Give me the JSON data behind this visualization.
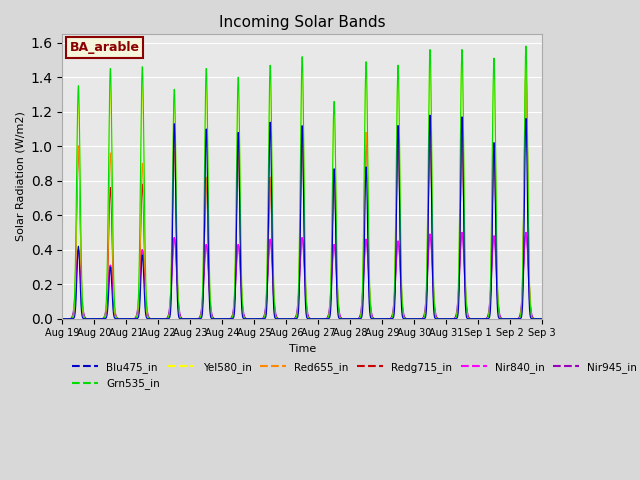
{
  "title": "Incoming Solar Bands",
  "xlabel": "Time",
  "ylabel": "Solar Radiation (W/m2)",
  "ylim": [
    0,
    1.65
  ],
  "yticks": [
    0.0,
    0.2,
    0.4,
    0.6,
    0.8,
    1.0,
    1.2,
    1.4,
    1.6
  ],
  "background_color": "#d8d8d8",
  "plot_bg_color": "#e8e8e8",
  "annotation": "BA_arable",
  "annotation_color": "#8b0000",
  "annotation_bg": "#f5f5dc",
  "series": {
    "Blu475_in": {
      "color": "#0000cc",
      "lw": 0.8
    },
    "Grn535_in": {
      "color": "#00dd00",
      "lw": 0.8
    },
    "Yel580_in": {
      "color": "#ffff00",
      "lw": 0.8
    },
    "Red655_in": {
      "color": "#ff8800",
      "lw": 0.8
    },
    "Redg715_in": {
      "color": "#cc0000",
      "lw": 0.8
    },
    "Nir840_in": {
      "color": "#ff00ff",
      "lw": 0.8
    },
    "Nir945_in": {
      "color": "#9900bb",
      "lw": 0.8
    }
  },
  "date_labels": [
    "Aug 19",
    "Aug 20",
    "Aug 21",
    "Aug 22",
    "Aug 23",
    "Aug 24",
    "Aug 25",
    "Aug 26",
    "Aug 27",
    "Aug 28",
    "Aug 29",
    "Aug 30",
    "Aug 31",
    "Sep 1",
    "Sep 2",
    "Sep 3"
  ],
  "n_days": 15,
  "samples_per_day": 200,
  "peaks": {
    "Grn535_in": [
      1.35,
      1.45,
      1.46,
      1.33,
      1.45,
      1.4,
      1.47,
      1.52,
      1.26,
      1.49,
      1.47,
      1.56,
      1.56,
      1.51,
      1.58
    ],
    "Yel580_in": [
      1.27,
      1.35,
      1.35,
      1.3,
      1.35,
      1.38,
      1.4,
      1.47,
      1.25,
      1.45,
      1.44,
      1.52,
      1.54,
      1.45,
      1.55
    ],
    "Red655_in": [
      1.0,
      0.96,
      0.9,
      1.03,
      0.82,
      1.01,
      0.82,
      1.07,
      0.84,
      1.08,
      1.08,
      1.1,
      1.05,
      1.02,
      1.44
    ],
    "Redg715_in": [
      1.0,
      0.76,
      0.78,
      1.03,
      0.81,
      0.98,
      0.8,
      1.05,
      0.84,
      1.08,
      1.05,
      1.09,
      1.04,
      1.0,
      1.44
    ],
    "Blu475_in": [
      0.42,
      0.3,
      0.37,
      1.13,
      1.1,
      1.08,
      1.14,
      1.12,
      0.87,
      0.88,
      1.12,
      1.18,
      1.17,
      1.02,
      1.16
    ],
    "Nir840_in": [
      0.4,
      0.31,
      0.4,
      0.47,
      0.43,
      0.43,
      0.46,
      0.47,
      0.43,
      0.46,
      0.45,
      0.49,
      0.5,
      0.48,
      0.5
    ],
    "Nir945_in": [
      0.4,
      0.31,
      0.4,
      0.47,
      0.43,
      0.43,
      0.46,
      0.47,
      0.43,
      0.46,
      0.45,
      0.49,
      0.5,
      0.48,
      0.5
    ]
  },
  "sigmas": {
    "Grn535_in": 0.055,
    "Yel580_in": 0.055,
    "Red655_in": 0.055,
    "Redg715_in": 0.055,
    "Blu475_in": 0.045,
    "Nir840_in": 0.065,
    "Nir945_in": 0.075
  }
}
